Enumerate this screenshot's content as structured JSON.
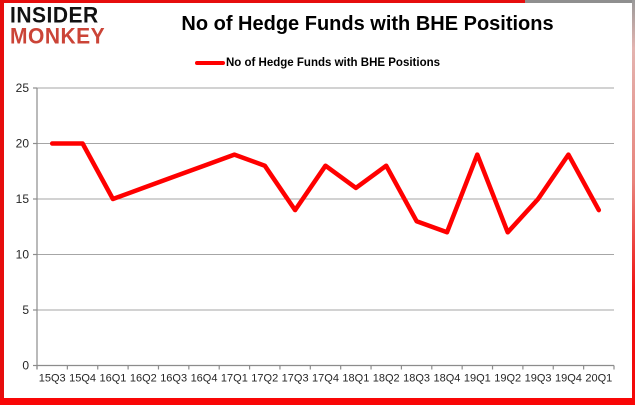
{
  "logo": {
    "line1": "INSIDER",
    "line2": "MONKEY"
  },
  "header": {
    "title": "No of Hedge Funds with BHE Positions"
  },
  "legend": {
    "label": "No of Hedge Funds with BHE Positions"
  },
  "colors": {
    "series_line": "#ff0000",
    "brand_accent": "#cb4437",
    "frame_border": "#e60d0d",
    "gridline": "#a6a6a6",
    "axis": "#8c8c8c",
    "tick_label": "#262626"
  },
  "chart_data": {
    "type": "line",
    "title": "No of Hedge Funds with BHE Positions",
    "series_name": "No of Hedge Funds with BHE Positions",
    "categories": [
      "15Q3",
      "15Q4",
      "16Q1",
      "16Q2",
      "16Q3",
      "16Q4",
      "17Q1",
      "17Q2",
      "17Q3",
      "17Q4",
      "18Q1",
      "18Q2",
      "18Q3",
      "18Q4",
      "19Q1",
      "19Q2",
      "19Q3",
      "19Q4",
      "20Q1"
    ],
    "values": [
      20,
      20,
      15,
      16,
      17,
      18,
      19,
      18,
      14,
      18,
      16,
      18,
      13,
      12,
      19,
      12,
      15,
      19,
      14
    ],
    "xlabel": "",
    "ylabel": "",
    "ylim": [
      0,
      25
    ],
    "yticks": [
      0,
      5,
      10,
      15,
      20,
      25
    ],
    "grid": true,
    "legend_position": "top-center",
    "line_color": "#ff0000"
  }
}
